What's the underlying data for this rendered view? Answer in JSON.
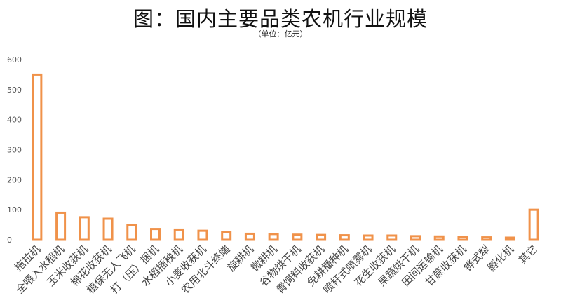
{
  "chart_data": {
    "type": "bar",
    "title": "图：国内主要品类农机行业规模",
    "subtitle": "（单位：亿元）",
    "xlabel": "",
    "ylabel": "",
    "ylim": [
      0,
      600
    ],
    "yticks": [
      0,
      100,
      200,
      300,
      400,
      500,
      600
    ],
    "grid": false,
    "legend": "none",
    "bar_style": "outline",
    "bar_color": "#F0924A",
    "categories": [
      "拖拉机",
      "全喂入水稻机",
      "玉米收获机",
      "棉花收获机",
      "植保无人飞机",
      "打（压）捆机",
      "水稻插秧机",
      "小麦收获机",
      "农用北斗终端",
      "旋耕机",
      "微耕机",
      "谷物烘干机",
      "青饲料收获机",
      "免耕播种机",
      "喷杆式喷雾机",
      "花生收获机",
      "果蔬烘干机",
      "田间运输机",
      "甘蔗收获机",
      "铧式犁",
      "孵化机",
      "其它"
    ],
    "values": [
      550,
      90,
      75,
      70,
      50,
      36,
      34,
      30,
      25,
      20,
      19,
      17,
      16,
      15,
      14,
      14,
      12,
      11,
      10,
      8,
      7,
      100
    ]
  }
}
